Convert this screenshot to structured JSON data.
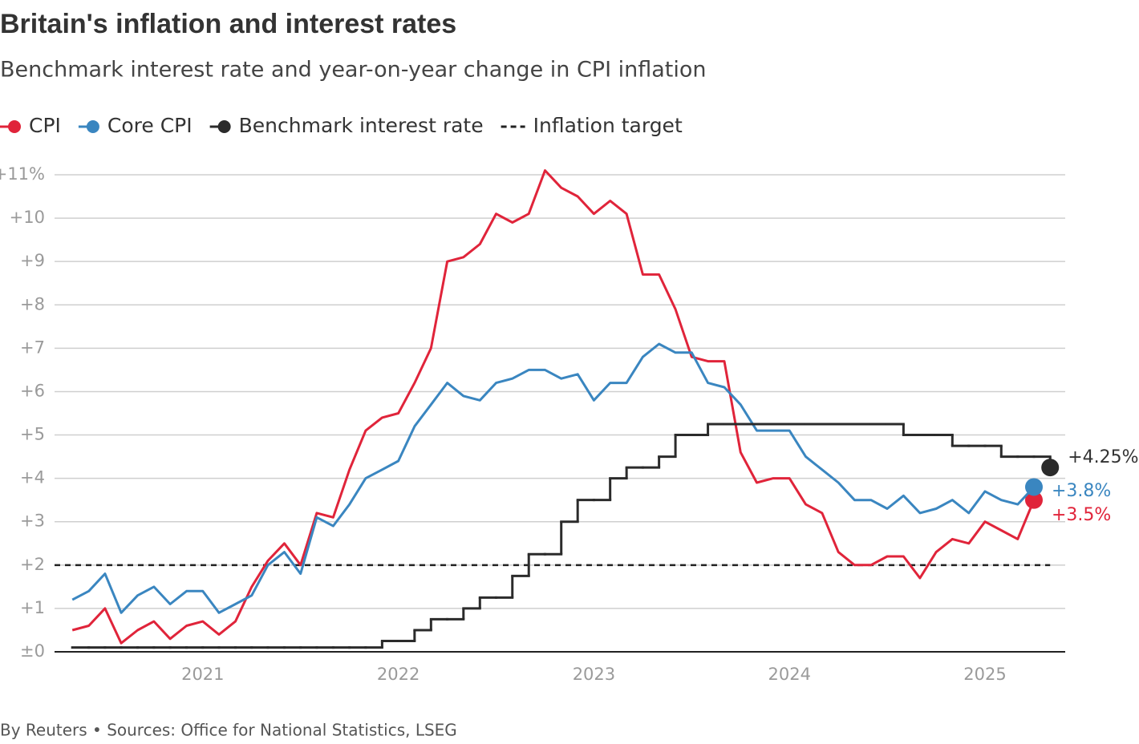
{
  "chart_data": {
    "type": "line",
    "title": "Britain's inflation and interest rates",
    "subtitle": "Benchmark interest rate and year-on-year change in CPI inflation",
    "source": "By Reuters • Sources: Office for National Statistics, LSEG",
    "xlim": [
      2020.242,
      2025.41
    ],
    "xticks": [
      2021,
      2022,
      2023,
      2024,
      2025
    ],
    "ylim": [
      0,
      11
    ],
    "yticks": [
      {
        "value": 0,
        "label": "±0"
      },
      {
        "value": 1,
        "label": "+1"
      },
      {
        "value": 2,
        "label": "+2"
      },
      {
        "value": 3,
        "label": "+3"
      },
      {
        "value": 4,
        "label": "+4"
      },
      {
        "value": 5,
        "label": "+5"
      },
      {
        "value": 6,
        "label": "+6"
      },
      {
        "value": 7,
        "label": "+7"
      },
      {
        "value": 8,
        "label": "+8"
      },
      {
        "value": 9,
        "label": "+9"
      },
      {
        "value": 10,
        "label": "+10"
      },
      {
        "value": 11,
        "label": "+11%"
      }
    ],
    "grid": true,
    "series": [
      {
        "name": "CPI",
        "color": "#e0243a",
        "end_label": "+3.5%",
        "x": [
          2020.333,
          2020.417,
          2020.5,
          2020.583,
          2020.667,
          2020.75,
          2020.833,
          2020.917,
          2021,
          2021.083,
          2021.167,
          2021.25,
          2021.333,
          2021.417,
          2021.5,
          2021.583,
          2021.667,
          2021.75,
          2021.833,
          2021.917,
          2022,
          2022.083,
          2022.167,
          2022.25,
          2022.333,
          2022.417,
          2022.5,
          2022.583,
          2022.667,
          2022.75,
          2022.833,
          2022.917,
          2023,
          2023.083,
          2023.167,
          2023.25,
          2023.333,
          2023.417,
          2023.5,
          2023.583,
          2023.667,
          2023.75,
          2023.833,
          2023.917,
          2024,
          2024.083,
          2024.167,
          2024.25,
          2024.333,
          2024.417,
          2024.5,
          2024.583,
          2024.667,
          2024.75,
          2024.833,
          2024.917,
          2025,
          2025.083,
          2025.167,
          2025.25
        ],
        "values": [
          0.5,
          0.6,
          1.0,
          0.2,
          0.5,
          0.7,
          0.3,
          0.6,
          0.7,
          0.4,
          0.7,
          1.5,
          2.1,
          2.5,
          2.0,
          3.2,
          3.1,
          4.2,
          5.1,
          5.4,
          5.5,
          6.2,
          7.0,
          9.0,
          9.1,
          9.4,
          10.1,
          9.9,
          10.1,
          11.1,
          10.7,
          10.5,
          10.1,
          10.4,
          10.1,
          8.7,
          8.7,
          7.9,
          6.8,
          6.7,
          6.7,
          4.6,
          3.9,
          4.0,
          4.0,
          3.4,
          3.2,
          2.3,
          2.0,
          2.0,
          2.2,
          2.2,
          1.7,
          2.3,
          2.6,
          2.5,
          3.0,
          2.8,
          2.6,
          3.5
        ]
      },
      {
        "name": "Core CPI",
        "color": "#3a86c0",
        "end_label": "+3.8%",
        "x": [
          2020.333,
          2020.417,
          2020.5,
          2020.583,
          2020.667,
          2020.75,
          2020.833,
          2020.917,
          2021,
          2021.083,
          2021.167,
          2021.25,
          2021.333,
          2021.417,
          2021.5,
          2021.583,
          2021.667,
          2021.75,
          2021.833,
          2021.917,
          2022,
          2022.083,
          2022.167,
          2022.25,
          2022.333,
          2022.417,
          2022.5,
          2022.583,
          2022.667,
          2022.75,
          2022.833,
          2022.917,
          2023,
          2023.083,
          2023.167,
          2023.25,
          2023.333,
          2023.417,
          2023.5,
          2023.583,
          2023.667,
          2023.75,
          2023.833,
          2023.917,
          2024,
          2024.083,
          2024.167,
          2024.25,
          2024.333,
          2024.417,
          2024.5,
          2024.583,
          2024.667,
          2024.75,
          2024.833,
          2024.917,
          2025,
          2025.083,
          2025.167,
          2025.25
        ],
        "values": [
          1.2,
          1.4,
          1.8,
          0.9,
          1.3,
          1.5,
          1.1,
          1.4,
          1.4,
          0.9,
          1.1,
          1.3,
          2.0,
          2.3,
          1.8,
          3.1,
          2.9,
          3.4,
          4.0,
          4.2,
          4.4,
          5.2,
          5.7,
          6.2,
          5.9,
          5.8,
          6.2,
          6.3,
          6.5,
          6.5,
          6.3,
          6.4,
          5.8,
          6.2,
          6.2,
          6.8,
          7.1,
          6.9,
          6.9,
          6.2,
          6.1,
          5.7,
          5.1,
          5.1,
          5.1,
          4.5,
          4.2,
          3.9,
          3.5,
          3.5,
          3.3,
          3.6,
          3.2,
          3.3,
          3.5,
          3.2,
          3.7,
          3.5,
          3.4,
          3.8
        ]
      },
      {
        "name": "Benchmark interest rate",
        "color": "#2b2b2b",
        "end_label": "+4.25%",
        "step": true,
        "x": [
          2020.333,
          2020.417,
          2020.5,
          2020.583,
          2020.667,
          2020.75,
          2020.833,
          2020.917,
          2021,
          2021.083,
          2021.167,
          2021.25,
          2021.333,
          2021.417,
          2021.5,
          2021.583,
          2021.667,
          2021.75,
          2021.833,
          2021.917,
          2022,
          2022.083,
          2022.167,
          2022.25,
          2022.333,
          2022.417,
          2022.5,
          2022.583,
          2022.667,
          2022.75,
          2022.833,
          2022.917,
          2023,
          2023.083,
          2023.167,
          2023.25,
          2023.333,
          2023.417,
          2023.5,
          2023.583,
          2023.667,
          2023.75,
          2023.833,
          2023.917,
          2024,
          2024.083,
          2024.167,
          2024.25,
          2024.333,
          2024.417,
          2024.5,
          2024.583,
          2024.667,
          2024.75,
          2024.833,
          2024.917,
          2025,
          2025.083,
          2025.167,
          2025.25,
          2025.333
        ],
        "values": [
          0.1,
          0.1,
          0.1,
          0.1,
          0.1,
          0.1,
          0.1,
          0.1,
          0.1,
          0.1,
          0.1,
          0.1,
          0.1,
          0.1,
          0.1,
          0.1,
          0.1,
          0.1,
          0.1,
          0.25,
          0.25,
          0.5,
          0.75,
          0.75,
          1,
          1.25,
          1.25,
          1.75,
          2.25,
          2.25,
          3,
          3.5,
          3.5,
          4,
          4.25,
          4.25,
          4.5,
          5,
          5,
          5.25,
          5.25,
          5.25,
          5.25,
          5.25,
          5.25,
          5.25,
          5.25,
          5.25,
          5.25,
          5.25,
          5.25,
          5,
          5,
          5,
          4.75,
          4.75,
          4.75,
          4.5,
          4.5,
          4.5,
          4.25
        ]
      }
    ],
    "target_line": {
      "name": "Inflation target",
      "value": 2,
      "color": "#222222"
    }
  }
}
